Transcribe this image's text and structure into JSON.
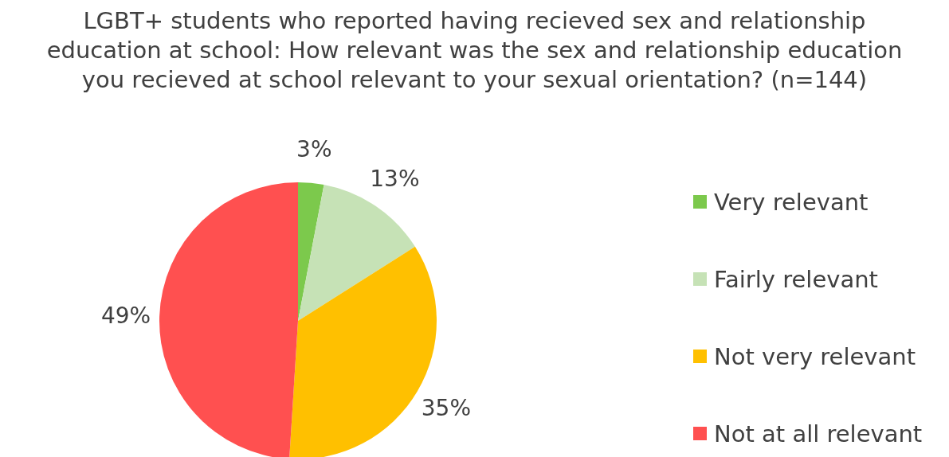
{
  "chart_data": {
    "type": "pie",
    "title": "LGBT+ students who reported having recieved sex and relationship education at school: How relevant was the sex and relationship education you recieved at school relevant to your sexual orientation? (n=144)",
    "categories": [
      "Very relevant",
      "Fairly relevant",
      "Not very relevant",
      "Not at all relevant"
    ],
    "values": [
      3,
      13,
      35,
      49
    ],
    "value_labels": [
      "3%",
      "13%",
      "35%",
      "49%"
    ],
    "colors": [
      "#7cc94c",
      "#c6e2b6",
      "#ffc000",
      "#ff5050"
    ],
    "legend": "right"
  }
}
